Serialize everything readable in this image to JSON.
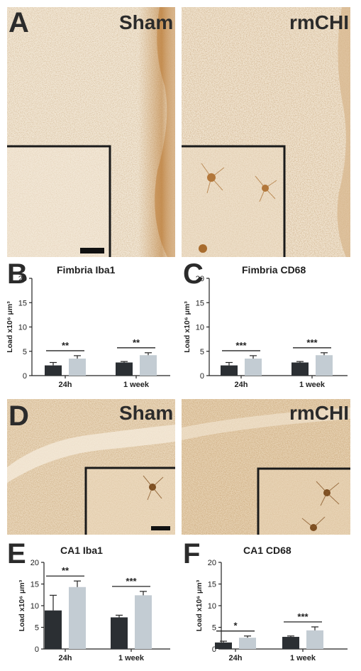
{
  "panels": {
    "A": {
      "letter": "A",
      "left_label": "Sham",
      "right_label": "rmCHI"
    },
    "B": {
      "letter": "B"
    },
    "C": {
      "letter": "C"
    },
    "D": {
      "letter": "D",
      "left_label": "Sham",
      "right_label": "rmCHI"
    },
    "E": {
      "letter": "E"
    },
    "F": {
      "letter": "F"
    }
  },
  "chart_data": [
    {
      "id": "B",
      "type": "bar",
      "title": "Fimbria Iba1",
      "ylabel": "Load x10⁶ μm³",
      "categories": [
        "24h",
        "1 week"
      ],
      "ylim": [
        0,
        20
      ],
      "yticks": [
        0,
        5,
        10,
        15,
        20
      ],
      "series": [
        {
          "values": [
            2.1,
            2.7
          ],
          "errors": [
            0.6,
            0.2
          ],
          "color": "#2b2f33"
        },
        {
          "values": [
            3.5,
            4.2
          ],
          "errors": [
            0.6,
            0.5
          ],
          "color": "#c3ccd3"
        }
      ],
      "significance": [
        "**",
        "**"
      ]
    },
    {
      "id": "C",
      "type": "bar",
      "title": "Fimbria CD68",
      "ylabel": "Load x10⁶ μm³",
      "categories": [
        "24h",
        "1 week"
      ],
      "ylim": [
        0,
        20
      ],
      "yticks": [
        0,
        5,
        10,
        15,
        20
      ],
      "series": [
        {
          "values": [
            2.1,
            2.7
          ],
          "errors": [
            0.6,
            0.2
          ],
          "color": "#2b2f33"
        },
        {
          "values": [
            3.5,
            4.2
          ],
          "errors": [
            0.6,
            0.5
          ],
          "color": "#c3ccd3"
        }
      ],
      "significance": [
        "***",
        "***"
      ]
    },
    {
      "id": "E",
      "type": "bar",
      "title": "CA1 Iba1",
      "ylabel": "Load x10⁶ μm³",
      "categories": [
        "24h",
        "1 week"
      ],
      "ylim": [
        0,
        20
      ],
      "yticks": [
        0,
        5,
        10,
        15,
        20
      ],
      "series": [
        {
          "values": [
            8.9,
            7.3
          ],
          "errors": [
            3.5,
            0.5
          ],
          "color": "#2b2f33"
        },
        {
          "values": [
            14.3,
            12.4
          ],
          "errors": [
            1.4,
            0.9
          ],
          "color": "#c3ccd3"
        }
      ],
      "significance": [
        "**",
        "***"
      ]
    },
    {
      "id": "F",
      "type": "bar",
      "title": "CA1 CD68",
      "ylabel": "Load x10⁶ μm³",
      "categories": [
        "24h",
        "1 week"
      ],
      "ylim": [
        0,
        20
      ],
      "yticks": [
        0,
        5,
        10,
        15,
        20
      ],
      "series": [
        {
          "values": [
            1.5,
            2.8
          ],
          "errors": [
            0.3,
            0.2
          ],
          "color": "#2b2f33"
        },
        {
          "values": [
            2.6,
            4.3
          ],
          "errors": [
            0.4,
            0.8
          ],
          "color": "#c3ccd3"
        }
      ],
      "significance": [
        "*",
        "***"
      ]
    }
  ]
}
